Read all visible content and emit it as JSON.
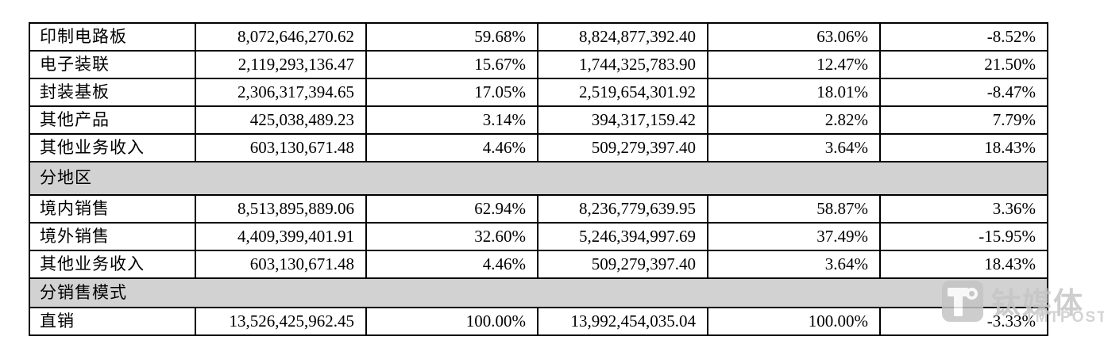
{
  "table": {
    "sections": [
      {
        "header": null,
        "rows": [
          {
            "label": "印制电路板",
            "amount_current": "8,072,646,270.62",
            "pct_current": "59.68%",
            "amount_prior": "8,824,877,392.40",
            "pct_prior": "63.06%",
            "yoy": "-8.52%"
          },
          {
            "label": "电子装联",
            "amount_current": "2,119,293,136.47",
            "pct_current": "15.67%",
            "amount_prior": "1,744,325,783.90",
            "pct_prior": "12.47%",
            "yoy": "21.50%"
          },
          {
            "label": "封装基板",
            "amount_current": "2,306,317,394.65",
            "pct_current": "17.05%",
            "amount_prior": "2,519,654,301.92",
            "pct_prior": "18.01%",
            "yoy": "-8.47%"
          },
          {
            "label": "其他产品",
            "amount_current": "425,038,489.23",
            "pct_current": "3.14%",
            "amount_prior": "394,317,159.42",
            "pct_prior": "2.82%",
            "yoy": "7.79%"
          },
          {
            "label": "其他业务收入",
            "amount_current": "603,130,671.48",
            "pct_current": "4.46%",
            "amount_prior": "509,279,397.40",
            "pct_prior": "3.64%",
            "yoy": "18.43%"
          }
        ]
      },
      {
        "header": "分地区",
        "rows": [
          {
            "label": "境内销售",
            "amount_current": "8,513,895,889.06",
            "pct_current": "62.94%",
            "amount_prior": "8,236,779,639.95",
            "pct_prior": "58.87%",
            "yoy": "3.36%"
          },
          {
            "label": "境外销售",
            "amount_current": "4,409,399,401.91",
            "pct_current": "32.60%",
            "amount_prior": "5,246,394,997.69",
            "pct_prior": "37.49%",
            "yoy": "-15.95%"
          },
          {
            "label": "其他业务收入",
            "amount_current": "603,130,671.48",
            "pct_current": "4.46%",
            "amount_prior": "509,279,397.40",
            "pct_prior": "3.64%",
            "yoy": "18.43%"
          }
        ]
      },
      {
        "header": "分销售模式",
        "rows": [
          {
            "label": "直销",
            "amount_current": "13,526,425,962.45",
            "pct_current": "100.00%",
            "amount_prior": "13,992,454,035.04",
            "pct_prior": "100.00%",
            "yoy": "-3.33%"
          }
        ]
      }
    ],
    "gray_color": "#d2d2d2",
    "border_color": "#000000"
  },
  "watermark": {
    "brand": "钛媒体",
    "sub": "TMTPOST"
  }
}
